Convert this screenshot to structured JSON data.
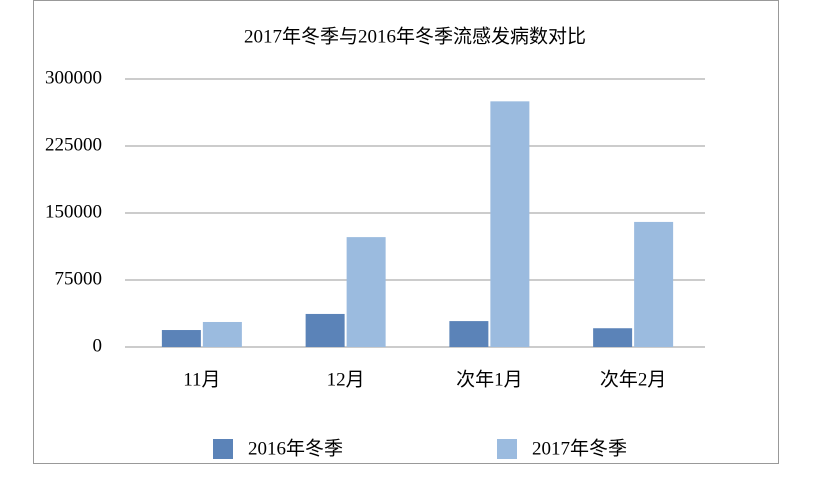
{
  "chart_data": {
    "type": "bar",
    "title": "2017年冬季与2016年冬季流感发病数对比",
    "categories": [
      "11月",
      "12月",
      "次年1月",
      "次年2月"
    ],
    "series": [
      {
        "name": "2016年冬季",
        "color": "#5b83b8",
        "values": [
          19000,
          37000,
          29000,
          21000
        ]
      },
      {
        "name": "2017年冬季",
        "color": "#9bbbdf",
        "values": [
          28000,
          123000,
          275000,
          140000
        ]
      }
    ],
    "ylim": [
      0,
      300000
    ],
    "yticks": [
      0,
      75000,
      150000,
      225000,
      300000
    ],
    "grid": true
  }
}
